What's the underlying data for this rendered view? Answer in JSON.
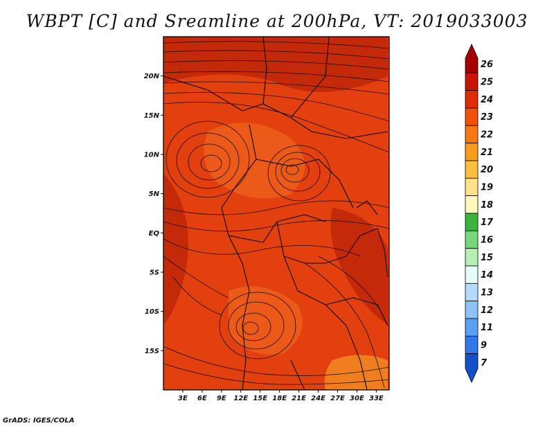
{
  "title": "WBPT [C] and Sreamline at 200hPa, VT: 2019033003",
  "credit": "GrADS: IGES/COLA",
  "map": {
    "lon_range": [
      0,
      35
    ],
    "lat_range": [
      -20,
      25
    ],
    "lon_ticks": [
      "3E",
      "6E",
      "9E",
      "12E",
      "15E",
      "18E",
      "21E",
      "24E",
      "27E",
      "30E",
      "33E"
    ],
    "lat_ticks": [
      "20N",
      "15N",
      "10N",
      "5N",
      "EQ",
      "5S",
      "10S",
      "15S"
    ],
    "field_colors": {
      "dominant": "#e2400e",
      "darker": "#c42a0a",
      "lighter": "#ec5a1a",
      "orange": "#f07d1e"
    }
  },
  "colorbar": {
    "labels": [
      "26",
      "25",
      "24",
      "23",
      "22",
      "21",
      "20",
      "19",
      "18",
      "17",
      "16",
      "15",
      "14",
      "13",
      "12",
      "11",
      "9",
      "7"
    ],
    "colors": [
      "#a50000",
      "#c81400",
      "#e02c05",
      "#f0500a",
      "#f57814",
      "#f79b1c",
      "#fbbe41",
      "#fde28c",
      "#fff7bc",
      "#3cb43c",
      "#78d778",
      "#b4f0b4",
      "#e6faf8",
      "#b4dcfa",
      "#8cc3f5",
      "#5aa0f0",
      "#3278e6",
      "#1450c8"
    ]
  }
}
